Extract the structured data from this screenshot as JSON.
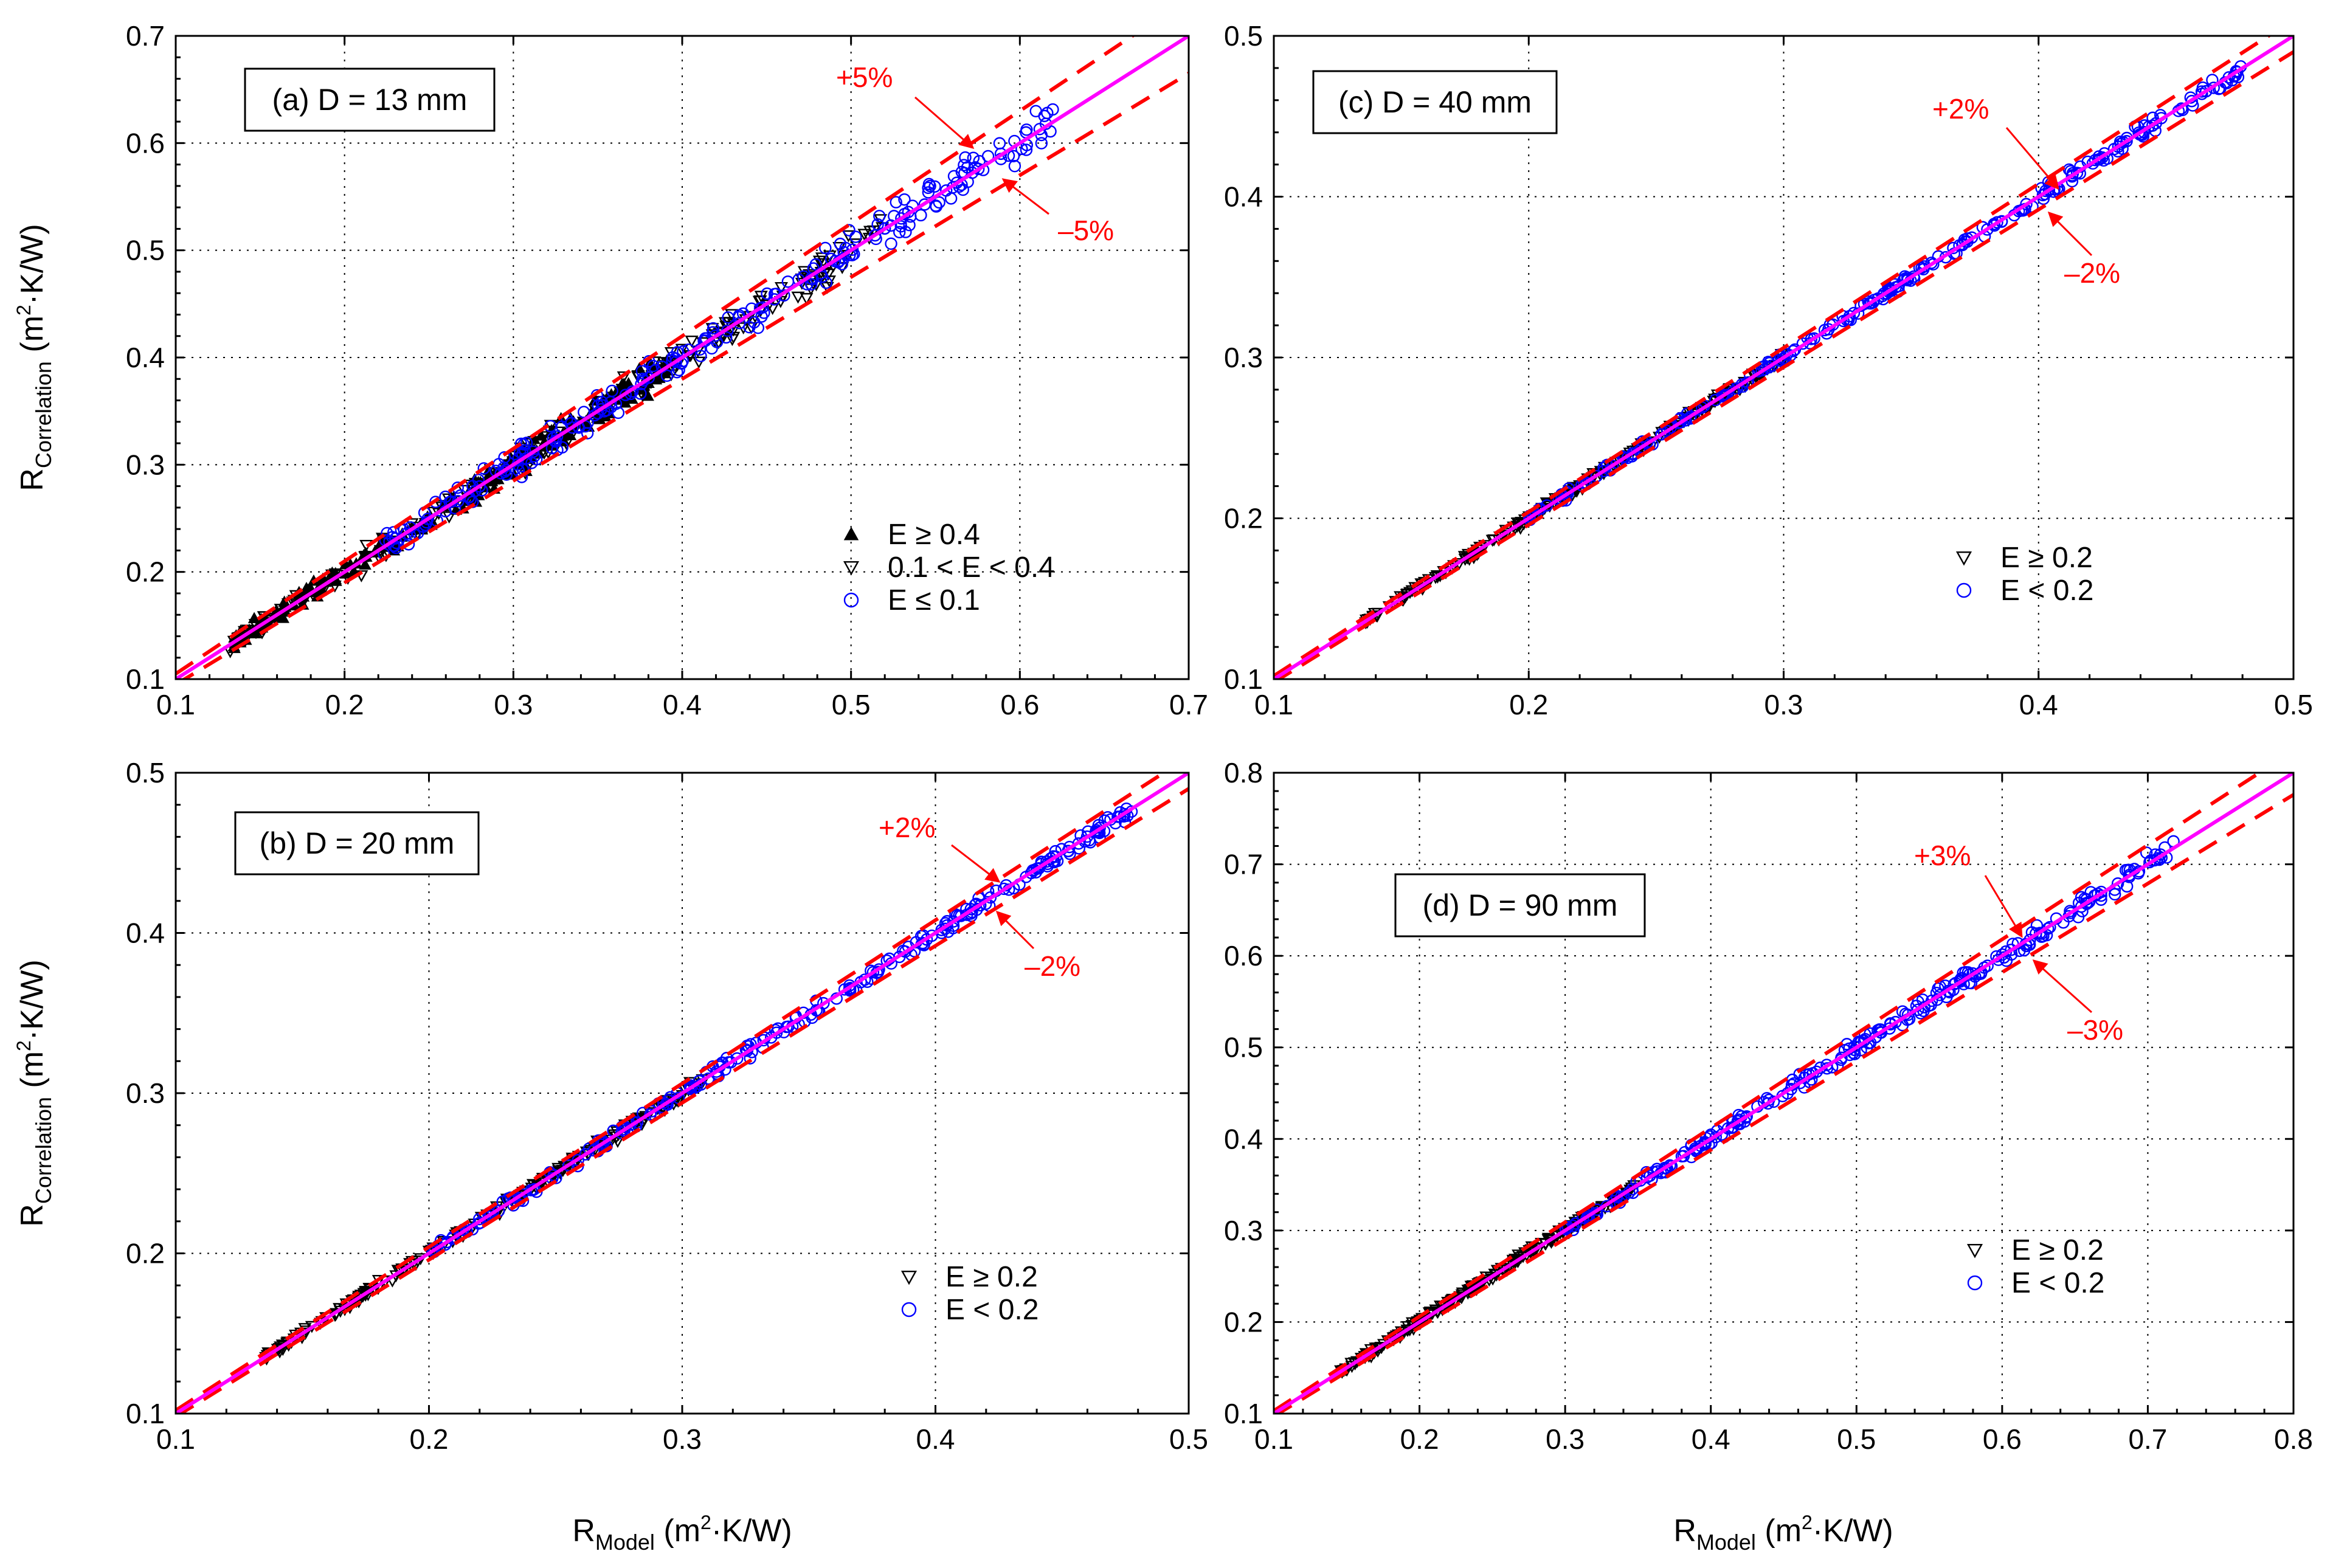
{
  "figure": {
    "y_label": {
      "main": "R",
      "sub": "Correlation",
      "unit_open": " (m",
      "unit_sup": "2",
      "unit_close": "·K/W)"
    },
    "x_label": {
      "main": "R",
      "sub": "Model",
      "unit_open": " (m",
      "unit_sup": "2",
      "unit_close": "·K/W)"
    }
  },
  "colors": {
    "ideal_line": "#ff00ff",
    "bound_lines": "#ff0000",
    "annotation": "#ff0000",
    "low_E_markers": "#0000ff",
    "high_E_markers": "#000000"
  },
  "chart_data": [
    {
      "id": "a",
      "type": "scatter",
      "title": "(a) D = 13 mm",
      "xlim": [
        0.1,
        0.7
      ],
      "ylim": [
        0.1,
        0.7
      ],
      "x_ticks": [
        "0.1",
        "0.2",
        "0.3",
        "0.4",
        "0.5",
        "0.6",
        "0.7"
      ],
      "y_ticks": [
        "0.1",
        "0.2",
        "0.3",
        "0.4",
        "0.5",
        "0.6",
        "0.7"
      ],
      "tolerance_percent": 5,
      "bound_labels": {
        "upper": "+5%",
        "lower": "–5%"
      },
      "legend": [
        "E ≥ 0.4",
        "0.1 < E < 0.4",
        "E ≤ 0.1"
      ],
      "series": [
        {
          "name": "E ≥ 0.4",
          "marker": "triangle-up-filled",
          "x_range": [
            0.13,
            0.4
          ],
          "spread": 0.018
        },
        {
          "name": "0.1 < E < 0.4",
          "marker": "triangle-down-open",
          "x_range": [
            0.13,
            0.52
          ],
          "spread": 0.022
        },
        {
          "name": "E ≤ 0.1",
          "marker": "circle-open",
          "x_range": [
            0.22,
            0.62
          ],
          "spread": 0.022
        }
      ]
    },
    {
      "id": "c",
      "type": "scatter",
      "title": "(c) D = 40 mm",
      "xlim": [
        0.1,
        0.5
      ],
      "ylim": [
        0.1,
        0.5
      ],
      "x_ticks": [
        "0.1",
        "0.2",
        "0.3",
        "0.4",
        "0.5"
      ],
      "y_ticks": [
        "0.1",
        "0.2",
        "0.3",
        "0.4",
        "0.5"
      ],
      "tolerance_percent": 2,
      "bound_labels": {
        "upper": "+2%",
        "lower": "–2%"
      },
      "legend": [
        "E ≥ 0.2",
        "E < 0.2"
      ],
      "series": [
        {
          "name": "E ≥ 0.2",
          "marker": "triangle-down-open",
          "x_range": [
            0.135,
            0.3
          ],
          "spread": 0.004
        },
        {
          "name": "E < 0.2",
          "marker": "circle-open",
          "x_range": [
            0.2,
            0.48
          ],
          "spread": 0.005
        }
      ]
    },
    {
      "id": "b",
      "type": "scatter",
      "title": "(b) D = 20 mm",
      "xlim": [
        0.1,
        0.5
      ],
      "ylim": [
        0.1,
        0.5
      ],
      "x_ticks": [
        "0.1",
        "0.2",
        "0.3",
        "0.4",
        "0.5"
      ],
      "y_ticks": [
        "0.1",
        "0.2",
        "0.3",
        "0.4",
        "0.5"
      ],
      "tolerance_percent": 2,
      "bound_labels": {
        "upper": "+2%",
        "lower": "–2%"
      },
      "legend": [
        "E ≥ 0.2",
        "E < 0.2"
      ],
      "series": [
        {
          "name": "E ≥ 0.2",
          "marker": "triangle-down-open",
          "x_range": [
            0.135,
            0.31
          ],
          "spread": 0.005
        },
        {
          "name": "E < 0.2",
          "marker": "circle-open",
          "x_range": [
            0.2,
            0.48
          ],
          "spread": 0.006
        }
      ]
    },
    {
      "id": "d",
      "type": "scatter",
      "title": "(d) D = 90 mm",
      "xlim": [
        0.1,
        0.8
      ],
      "ylim": [
        0.1,
        0.8
      ],
      "x_ticks": [
        "0.1",
        "0.2",
        "0.3",
        "0.4",
        "0.5",
        "0.6",
        "0.7",
        "0.8"
      ],
      "y_ticks": [
        "0.1",
        "0.2",
        "0.3",
        "0.4",
        "0.5",
        "0.6",
        "0.7",
        "0.8"
      ],
      "tolerance_percent": 3,
      "bound_labels": {
        "upper": "+3%",
        "lower": "–3%"
      },
      "legend": [
        "E ≥ 0.2",
        "E < 0.2"
      ],
      "series": [
        {
          "name": "E ≥ 0.2",
          "marker": "triangle-down-open",
          "x_range": [
            0.145,
            0.35
          ],
          "spread": 0.008
        },
        {
          "name": "E < 0.2",
          "marker": "circle-open",
          "x_range": [
            0.3,
            0.72
          ],
          "spread": 0.012
        }
      ]
    }
  ]
}
